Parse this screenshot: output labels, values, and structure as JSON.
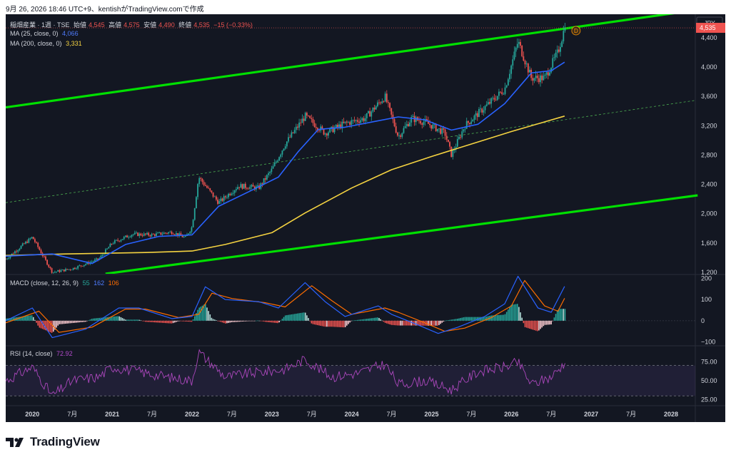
{
  "header": {
    "caption": "9月 26, 2026 18:46 UTC+9、kentishがTradingView.comで作成"
  },
  "main_legend": {
    "symbol": "稲畑産業 · 1週 · TSE",
    "open_label": "始値",
    "open": "4,545",
    "high_label": "高値",
    "high": "4,575",
    "low_label": "安値",
    "low": "4,490",
    "close_label": "終値",
    "close": "4,535",
    "change": "−15 (−0.33%)"
  },
  "ma25_legend": {
    "label": "MA (25, close, 0)",
    "value": "4,066"
  },
  "ma200_legend": {
    "label": "MA (200, close, 0)",
    "value": "3,331"
  },
  "macd_legend": {
    "label": "MACD (close, 12, 26, 9)",
    "hist": "55",
    "macd": "162",
    "signal": "106"
  },
  "rsi_legend": {
    "label": "RSI (14, close)",
    "value": "72.92"
  },
  "currency_badge": "JPY",
  "last_price_tag": "4,535",
  "event_marker": "D",
  "brand": "TradingView",
  "colors": {
    "background": "#131722",
    "up": "#26a69a",
    "down": "#ef5350",
    "ma25": "#2962ff",
    "ma200": "#f5d341",
    "channel": "#00e000",
    "macd": "#2962ff",
    "signal": "#ff6d00",
    "rsi": "#9c27b0"
  },
  "chart_data": [
    {
      "type": "candlestick",
      "title": "稲畑産業 · 1週 · TSE",
      "x_ticks": [
        "2020",
        "7月",
        "2021",
        "7月",
        "2022",
        "7月",
        "2023",
        "7月",
        "2024",
        "7月",
        "2025",
        "7月",
        "2026",
        "7月",
        "2027",
        "7月",
        "2028"
      ],
      "y_ticks": [
        "4,400",
        "4,000",
        "3,600",
        "3,200",
        "2,800",
        "2,400",
        "2,000",
        "1,600",
        "1,200"
      ],
      "ylim": [
        1180,
        4720
      ],
      "grid": false,
      "approx_close_path": [
        {
          "x": "2019-09",
          "y": 1380
        },
        {
          "x": "2020-01",
          "y": 1680
        },
        {
          "x": "2020-04",
          "y": 1200
        },
        {
          "x": "2020-07",
          "y": 1250
        },
        {
          "x": "2020-11",
          "y": 1380
        },
        {
          "x": "2021-01",
          "y": 1600
        },
        {
          "x": "2021-04",
          "y": 1720
        },
        {
          "x": "2021-07",
          "y": 1710
        },
        {
          "x": "2021-10",
          "y": 1750
        },
        {
          "x": "2021-12",
          "y": 1670
        },
        {
          "x": "2022-01",
          "y": 1820
        },
        {
          "x": "2022-02",
          "y": 2500
        },
        {
          "x": "2022-05",
          "y": 2150
        },
        {
          "x": "2022-08",
          "y": 2380
        },
        {
          "x": "2022-11",
          "y": 2350
        },
        {
          "x": "2023-01",
          "y": 2600
        },
        {
          "x": "2023-03",
          "y": 2950
        },
        {
          "x": "2023-06",
          "y": 3330
        },
        {
          "x": "2023-09",
          "y": 3100
        },
        {
          "x": "2023-12",
          "y": 3230
        },
        {
          "x": "2024-03",
          "y": 3300
        },
        {
          "x": "2024-06",
          "y": 3600
        },
        {
          "x": "2024-08",
          "y": 3050
        },
        {
          "x": "2024-10",
          "y": 3300
        },
        {
          "x": "2024-12",
          "y": 3250
        },
        {
          "x": "2025-03",
          "y": 3100
        },
        {
          "x": "2025-04",
          "y": 2800
        },
        {
          "x": "2025-06",
          "y": 3200
        },
        {
          "x": "2025-09",
          "y": 3450
        },
        {
          "x": "2025-12",
          "y": 3700
        },
        {
          "x": "2026-02",
          "y": 4350
        },
        {
          "x": "2026-04",
          "y": 3850
        },
        {
          "x": "2026-06",
          "y": 3850
        },
        {
          "x": "2026-08",
          "y": 4200
        },
        {
          "x": "2026-09",
          "y": 4535
        }
      ],
      "series": [
        {
          "name": "MA (25, close, 0)",
          "points": [
            {
              "x": "2019-09",
              "y": 1420
            },
            {
              "x": "2020-04",
              "y": 1450
            },
            {
              "x": "2020-10",
              "y": 1320
            },
            {
              "x": "2021-03",
              "y": 1580
            },
            {
              "x": "2021-08",
              "y": 1690
            },
            {
              "x": "2022-01",
              "y": 1710
            },
            {
              "x": "2022-05",
              "y": 2100
            },
            {
              "x": "2022-10",
              "y": 2320
            },
            {
              "x": "2023-02",
              "y": 2500
            },
            {
              "x": "2023-05",
              "y": 2850
            },
            {
              "x": "2023-08",
              "y": 3150
            },
            {
              "x": "2023-12",
              "y": 3180
            },
            {
              "x": "2024-04",
              "y": 3250
            },
            {
              "x": "2024-08",
              "y": 3320
            },
            {
              "x": "2024-12",
              "y": 3280
            },
            {
              "x": "2025-04",
              "y": 3140
            },
            {
              "x": "2025-08",
              "y": 3220
            },
            {
              "x": "2025-12",
              "y": 3500
            },
            {
              "x": "2026-04",
              "y": 3920
            },
            {
              "x": "2026-07",
              "y": 3950
            },
            {
              "x": "2026-09",
              "y": 4066
            }
          ]
        },
        {
          "name": "MA (200, close, 0)",
          "points": [
            {
              "x": "2019-09",
              "y": 1430
            },
            {
              "x": "2020-06",
              "y": 1450
            },
            {
              "x": "2021-06",
              "y": 1470
            },
            {
              "x": "2022-01",
              "y": 1490
            },
            {
              "x": "2022-06",
              "y": 1580
            },
            {
              "x": "2023-01",
              "y": 1740
            },
            {
              "x": "2023-06",
              "y": 2010
            },
            {
              "x": "2024-01",
              "y": 2350
            },
            {
              "x": "2024-07",
              "y": 2600
            },
            {
              "x": "2025-01",
              "y": 2780
            },
            {
              "x": "2025-07",
              "y": 2950
            },
            {
              "x": "2026-01",
              "y": 3120
            },
            {
              "x": "2026-09",
              "y": 3331
            }
          ]
        }
      ],
      "trend_channel": {
        "upper": [
          {
            "x": "2019-09",
            "y": 3450
          },
          {
            "x": "2028-05",
            "y": 4780
          }
        ],
        "middle": [
          {
            "x": "2019-09",
            "y": 2150
          },
          {
            "x": "2028-05",
            "y": 3550
          }
        ],
        "lower": [
          {
            "x": "2020-12",
            "y": 1180
          },
          {
            "x": "2028-05",
            "y": 2250
          }
        ]
      },
      "last_close": 4535
    },
    {
      "type": "bar",
      "title": "MACD (close, 12, 26, 9)",
      "y_ticks": [
        "200",
        "100",
        "0",
        "−100"
      ],
      "ylim": [
        -115,
        215
      ],
      "series": [
        {
          "name": "macd",
          "points": [
            {
              "x": "2019-09",
              "y": 0
            },
            {
              "x": "2020-01",
              "y": 60
            },
            {
              "x": "2020-04",
              "y": -80
            },
            {
              "x": "2020-09",
              "y": -40
            },
            {
              "x": "2021-02",
              "y": 60
            },
            {
              "x": "2021-05",
              "y": 60
            },
            {
              "x": "2021-10",
              "y": 10
            },
            {
              "x": "2022-01",
              "y": 20
            },
            {
              "x": "2022-03",
              "y": 160
            },
            {
              "x": "2022-06",
              "y": 100
            },
            {
              "x": "2022-11",
              "y": 90
            },
            {
              "x": "2023-02",
              "y": 60
            },
            {
              "x": "2023-06",
              "y": 180
            },
            {
              "x": "2023-09",
              "y": 90
            },
            {
              "x": "2023-12",
              "y": 20
            },
            {
              "x": "2024-05",
              "y": 70
            },
            {
              "x": "2024-07",
              "y": 30
            },
            {
              "x": "2024-11",
              "y": -20
            },
            {
              "x": "2025-02",
              "y": -60
            },
            {
              "x": "2025-05",
              "y": -30
            },
            {
              "x": "2025-09",
              "y": 20
            },
            {
              "x": "2025-12",
              "y": 80
            },
            {
              "x": "2026-02",
              "y": 210
            },
            {
              "x": "2026-05",
              "y": 60
            },
            {
              "x": "2026-07",
              "y": 40
            },
            {
              "x": "2026-09",
              "y": 162
            }
          ]
        },
        {
          "name": "signal",
          "points": [
            {
              "x": "2019-09",
              "y": -10
            },
            {
              "x": "2020-02",
              "y": 45
            },
            {
              "x": "2020-05",
              "y": -55
            },
            {
              "x": "2020-10",
              "y": -30
            },
            {
              "x": "2021-03",
              "y": 55
            },
            {
              "x": "2021-06",
              "y": 55
            },
            {
              "x": "2021-11",
              "y": 15
            },
            {
              "x": "2022-02",
              "y": 30
            },
            {
              "x": "2022-04",
              "y": 130
            },
            {
              "x": "2022-07",
              "y": 105
            },
            {
              "x": "2022-12",
              "y": 85
            },
            {
              "x": "2023-03",
              "y": 65
            },
            {
              "x": "2023-07",
              "y": 165
            },
            {
              "x": "2023-10",
              "y": 95
            },
            {
              "x": "2024-01",
              "y": 30
            },
            {
              "x": "2024-06",
              "y": 60
            },
            {
              "x": "2024-08",
              "y": 40
            },
            {
              "x": "2024-12",
              "y": -10
            },
            {
              "x": "2025-03",
              "y": -50
            },
            {
              "x": "2025-06",
              "y": -35
            },
            {
              "x": "2025-10",
              "y": 15
            },
            {
              "x": "2026-01",
              "y": 70
            },
            {
              "x": "2026-03",
              "y": 190
            },
            {
              "x": "2026-06",
              "y": 70
            },
            {
              "x": "2026-08",
              "y": 45
            },
            {
              "x": "2026-09",
              "y": 106
            }
          ]
        }
      ]
    },
    {
      "type": "line",
      "title": "RSI (14, close)",
      "y_ticks": [
        "75.00",
        "50.00",
        "25.00"
      ],
      "ylim": [
        18,
        95
      ],
      "bands": [
        70,
        30
      ],
      "series": [
        {
          "name": "RSI",
          "points": [
            {
              "x": "2019-09",
              "y": 50
            },
            {
              "x": "2020-01",
              "y": 68
            },
            {
              "x": "2020-04",
              "y": 30
            },
            {
              "x": "2020-07",
              "y": 50
            },
            {
              "x": "2020-11",
              "y": 55
            },
            {
              "x": "2021-01",
              "y": 68
            },
            {
              "x": "2021-05",
              "y": 62
            },
            {
              "x": "2021-09",
              "y": 55
            },
            {
              "x": "2022-01",
              "y": 50
            },
            {
              "x": "2022-02",
              "y": 88
            },
            {
              "x": "2022-06",
              "y": 55
            },
            {
              "x": "2022-10",
              "y": 60
            },
            {
              "x": "2023-03",
              "y": 65
            },
            {
              "x": "2023-06",
              "y": 78
            },
            {
              "x": "2023-10",
              "y": 55
            },
            {
              "x": "2024-02",
              "y": 60
            },
            {
              "x": "2024-06",
              "y": 72
            },
            {
              "x": "2024-08",
              "y": 45
            },
            {
              "x": "2024-12",
              "y": 50
            },
            {
              "x": "2025-04",
              "y": 38
            },
            {
              "x": "2025-08",
              "y": 62
            },
            {
              "x": "2025-12",
              "y": 68
            },
            {
              "x": "2026-02",
              "y": 74
            },
            {
              "x": "2026-04",
              "y": 45
            },
            {
              "x": "2026-07",
              "y": 55
            },
            {
              "x": "2026-09",
              "y": 72.92
            }
          ]
        }
      ]
    }
  ]
}
